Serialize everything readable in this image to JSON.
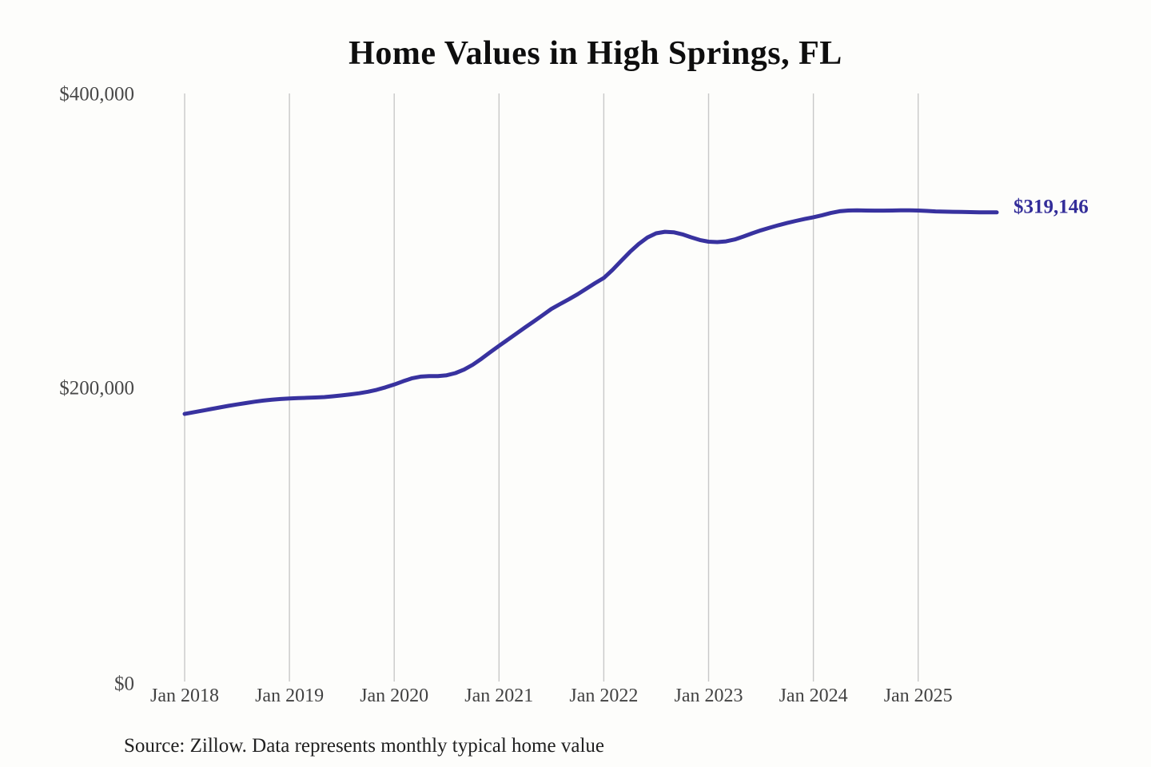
{
  "title": "Home Values in High Springs, FL",
  "annotation": {
    "end_label": "$319,146"
  },
  "source": "Source: Zillow. Data represents monthly typical home value",
  "colors": {
    "line": "#38329f",
    "end_label": "#332d99",
    "grid": "#c8c8c8",
    "x_axis_text": "#424242",
    "y_axis_text": "#484848",
    "title_text": "#0e0e0e",
    "source_text": "#212121",
    "background": "#fdfdfb"
  },
  "chart_data": {
    "type": "line",
    "title": "Home Values in High Springs, FL",
    "xlabel": "",
    "ylabel": "",
    "ylim": [
      0,
      400000
    ],
    "y_tick_labels": [
      {
        "label": "$0",
        "value": 0
      },
      {
        "label": "$200,000",
        "value": 200000
      },
      {
        "label": "$400,000",
        "value": 400000
      }
    ],
    "x_tick_labels": [
      "Jan 2018",
      "Jan 2019",
      "Jan 2020",
      "Jan 2021",
      "Jan 2022",
      "Jan 2023",
      "Jan 2024",
      "Jan 2025"
    ],
    "grid": "vertical-only",
    "legend": "none",
    "unit": "USD",
    "frequency": "monthly",
    "start_month": "2018-01",
    "end_month": "2025-10",
    "final_value": 319146,
    "series": [
      {
        "name": "Monthly typical home value",
        "values": [
          182000,
          183100,
          184200,
          185300,
          186400,
          187500,
          188500,
          189400,
          190300,
          191100,
          191700,
          192200,
          192500,
          192800,
          193000,
          193200,
          193500,
          194000,
          194600,
          195300,
          196100,
          197100,
          198400,
          200100,
          202000,
          204200,
          206200,
          207400,
          207700,
          207700,
          208300,
          209800,
          212200,
          215500,
          219600,
          224000,
          228300,
          232500,
          236700,
          240900,
          245000,
          249200,
          253400,
          256800,
          260000,
          263400,
          267200,
          271000,
          274500,
          280000,
          286200,
          292300,
          297600,
          302000,
          304900,
          305900,
          305600,
          304200,
          302200,
          300300,
          299200,
          298900,
          299400,
          300700,
          302700,
          304900,
          306900,
          308700,
          310400,
          311900,
          313300,
          314600,
          315800,
          317200,
          318700,
          319900,
          320400,
          320500,
          320400,
          320300,
          320300,
          320400,
          320500,
          320500,
          320400,
          320100,
          319800,
          319600,
          319500,
          319400,
          319300,
          319200,
          319200,
          319146
        ]
      }
    ]
  }
}
